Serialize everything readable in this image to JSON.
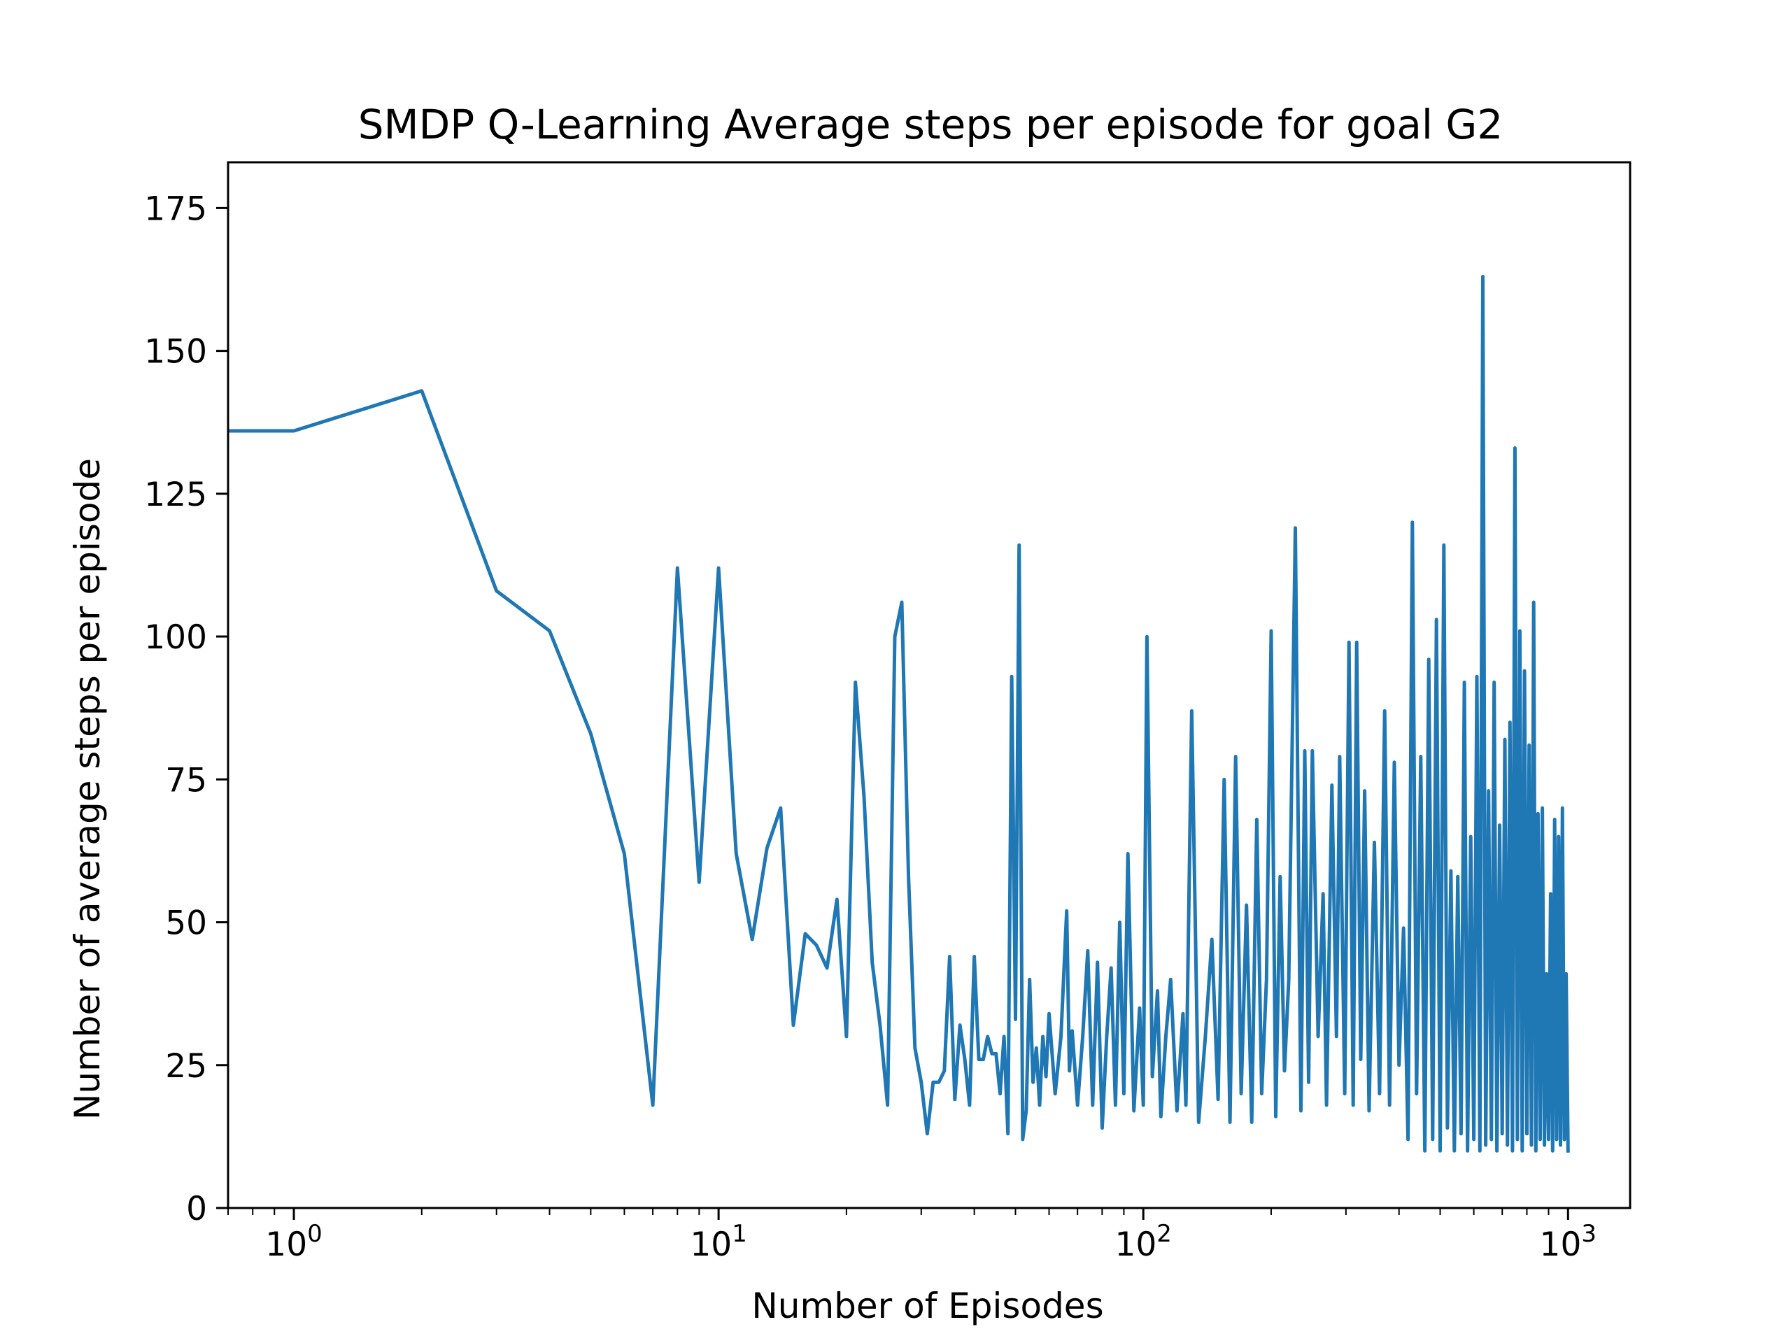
{
  "chart_data": {
    "type": "line",
    "title": "SMDP Q-Learning Average steps per episode for goal G2",
    "xlabel": "Number of Episodes",
    "ylabel": "Number of average steps per episode",
    "xscale": "log",
    "xlim": [
      0.7,
      1400
    ],
    "ylim": [
      0,
      183
    ],
    "grid": false,
    "legend": "none",
    "line_color": "#1f77b4",
    "x_ticks": [
      {
        "value": 1,
        "base": "10",
        "exp": "0"
      },
      {
        "value": 10,
        "base": "10",
        "exp": "1"
      },
      {
        "value": 100,
        "base": "10",
        "exp": "2"
      },
      {
        "value": 1000,
        "base": "10",
        "exp": "3"
      }
    ],
    "y_ticks": [
      {
        "value": 0,
        "label": "0"
      },
      {
        "value": 25,
        "label": "25"
      },
      {
        "value": 50,
        "label": "50"
      },
      {
        "value": 75,
        "label": "75"
      },
      {
        "value": 100,
        "label": "100"
      },
      {
        "value": 125,
        "label": "125"
      },
      {
        "value": 150,
        "label": "150"
      },
      {
        "value": 175,
        "label": "175"
      }
    ],
    "series": [
      {
        "name": "",
        "x": [
          0.7,
          1,
          2,
          3,
          4,
          5,
          6,
          7,
          8,
          9,
          10,
          11,
          12,
          13,
          14,
          15,
          16,
          17,
          18,
          19,
          20,
          21,
          22,
          23,
          24,
          25,
          26,
          27,
          28,
          29,
          30,
          31,
          32,
          33,
          34,
          35,
          36,
          37,
          38,
          39,
          40,
          41,
          42,
          43,
          44,
          45,
          46,
          47,
          48,
          49,
          50,
          51,
          52,
          53,
          54,
          55,
          56,
          57,
          58,
          59,
          60,
          62,
          64,
          66,
          67,
          68,
          70,
          72,
          74,
          76,
          78,
          80,
          82,
          84,
          86,
          88,
          90,
          92,
          95,
          98,
          100,
          102,
          105,
          108,
          110,
          113,
          116,
          120,
          124,
          126,
          130,
          135,
          140,
          145,
          150,
          155,
          160,
          165,
          170,
          175,
          180,
          185,
          190,
          195,
          200,
          205,
          210,
          215,
          220,
          228,
          235,
          240,
          245,
          250,
          258,
          265,
          270,
          278,
          285,
          290,
          298,
          305,
          312,
          318,
          325,
          332,
          340,
          350,
          360,
          370,
          380,
          390,
          400,
          410,
          420,
          430,
          440,
          450,
          460,
          470,
          480,
          490,
          500,
          510,
          520,
          530,
          540,
          550,
          560,
          570,
          580,
          590,
          600,
          610,
          620,
          630,
          640,
          650,
          660,
          670,
          680,
          690,
          700,
          710,
          720,
          730,
          740,
          750,
          760,
          770,
          780,
          790,
          800,
          810,
          820,
          830,
          840,
          850,
          860,
          870,
          880,
          890,
          900,
          910,
          920,
          930,
          940,
          950,
          960,
          970,
          980,
          990,
          1000
        ],
        "y": [
          136,
          136,
          143,
          108,
          101,
          83,
          62,
          18,
          112,
          57,
          112,
          62,
          47,
          63,
          70,
          32,
          48,
          46,
          42,
          54,
          30,
          92,
          72,
          43,
          32,
          18,
          100,
          106,
          58,
          28,
          22,
          13,
          22,
          22,
          24,
          44,
          19,
          32,
          26,
          18,
          44,
          26,
          26,
          30,
          27,
          27,
          20,
          30,
          13,
          93,
          33,
          116,
          12,
          17,
          40,
          22,
          28,
          18,
          30,
          23,
          34,
          20,
          30,
          52,
          24,
          31,
          18,
          30,
          45,
          18,
          43,
          14,
          30,
          42,
          18,
          50,
          20,
          62,
          17,
          35,
          18,
          100,
          23,
          38,
          16,
          30,
          40,
          17,
          34,
          18,
          87,
          15,
          30,
          47,
          19,
          75,
          15,
          79,
          20,
          53,
          15,
          68,
          20,
          40,
          101,
          16,
          58,
          24,
          40,
          119,
          17,
          80,
          22,
          80,
          30,
          55,
          18,
          74,
          30,
          79,
          20,
          99,
          18,
          99,
          26,
          73,
          17,
          64,
          20,
          87,
          18,
          78,
          25,
          49,
          12,
          120,
          20,
          79,
          10,
          96,
          12,
          103,
          10,
          116,
          14,
          59,
          10,
          58,
          13,
          92,
          10,
          65,
          12,
          93,
          10,
          163,
          11,
          73,
          12,
          92,
          10,
          67,
          13,
          82,
          11,
          85,
          10,
          133,
          12,
          101,
          10,
          94,
          13,
          81,
          11,
          106,
          10,
          69,
          12,
          70,
          11,
          41,
          12,
          55,
          10,
          68,
          12,
          65,
          11,
          70,
          12,
          41,
          10
        ]
      }
    ]
  }
}
